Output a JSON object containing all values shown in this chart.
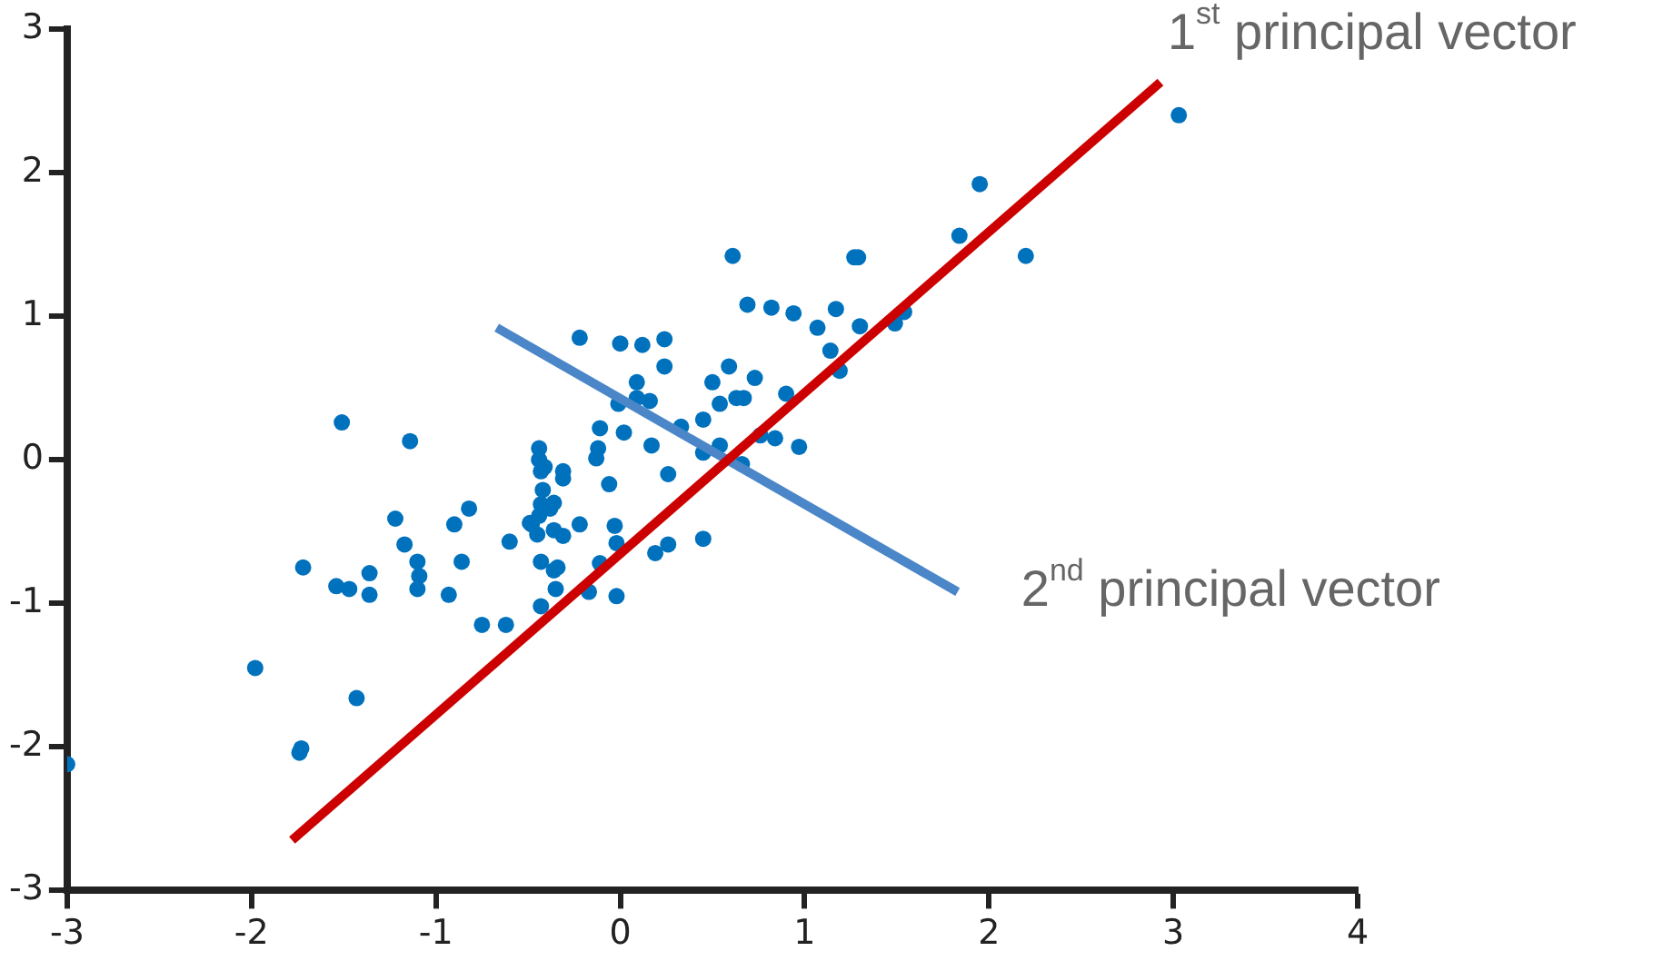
{
  "chart_data": {
    "type": "scatter",
    "xlim": [
      -3,
      4
    ],
    "xticks": [
      -3,
      -2,
      -1,
      0,
      1,
      2,
      3,
      4
    ],
    "ylim": [
      -3,
      3
    ],
    "yticks": [
      -3,
      -2,
      -1,
      0,
      1,
      2,
      3
    ],
    "grid": false,
    "legend": false,
    "series": [
      {
        "color": "#0072bd",
        "marker": "circle",
        "x": [
          -3.0,
          -1.98,
          -1.74,
          -1.73,
          -1.72,
          -1.51,
          -1.54,
          -1.47,
          -1.43,
          -1.36,
          -1.36,
          -1.14,
          -1.22,
          -1.17,
          -1.1,
          -1.09,
          -1.1,
          -0.93,
          -0.9,
          -0.86,
          -0.82,
          -0.75,
          -0.62,
          -0.6,
          -0.49,
          -0.44,
          -0.44,
          -0.43,
          -0.41,
          -0.42,
          -0.43,
          -0.44,
          -0.43,
          -0.43,
          -0.38,
          -0.36,
          -0.35,
          -0.31,
          -0.22,
          0.0,
          0.12,
          0.24,
          0.24,
          0.09,
          0.09,
          0.16,
          -0.01,
          -0.11,
          0.02,
          0.17,
          -0.12,
          -0.13,
          0.33,
          0.45,
          0.5,
          0.59,
          0.54,
          0.63,
          0.67,
          0.73,
          0.9,
          0.45,
          0.54,
          0.66,
          0.76,
          0.84,
          0.97,
          0.61,
          0.69,
          0.82,
          0.94,
          1.07,
          1.17,
          1.14,
          1.19,
          1.3,
          1.27,
          1.29,
          -0.31,
          -0.36,
          -0.06,
          0.26,
          -0.22,
          -0.31,
          -0.48,
          -0.45,
          -0.03,
          -0.02,
          0.19,
          0.26,
          0.45,
          -0.11,
          -0.36,
          -0.34,
          -0.17,
          -0.02,
          3.03,
          1.95,
          1.84,
          2.2,
          1.49,
          1.54
        ],
        "values": [
          -2.12,
          -1.45,
          -2.04,
          -2.01,
          -0.75,
          0.26,
          -0.88,
          -0.9,
          -1.66,
          -0.79,
          -0.94,
          0.13,
          -0.41,
          -0.59,
          -0.71,
          -0.81,
          -0.9,
          -0.94,
          -0.45,
          -0.71,
          -0.34,
          -1.15,
          -1.15,
          -0.57,
          -0.44,
          0.08,
          0.0,
          -0.08,
          -0.05,
          -0.21,
          -0.31,
          -0.39,
          -0.71,
          -1.02,
          -0.34,
          -0.49,
          -0.9,
          -0.13,
          0.85,
          0.81,
          0.8,
          0.84,
          0.65,
          0.54,
          0.43,
          0.41,
          0.39,
          0.22,
          0.19,
          0.1,
          0.08,
          0.01,
          0.23,
          0.28,
          0.54,
          0.65,
          0.39,
          0.43,
          0.43,
          0.57,
          0.46,
          0.05,
          0.1,
          -0.03,
          0.17,
          0.15,
          0.09,
          1.42,
          1.08,
          1.06,
          1.02,
          0.92,
          1.05,
          0.76,
          0.62,
          0.93,
          1.41,
          1.41,
          -0.08,
          -0.3,
          -0.17,
          -0.1,
          -0.45,
          -0.53,
          -0.45,
          -0.52,
          -0.46,
          -0.58,
          -0.65,
          -0.59,
          -0.55,
          -0.72,
          -0.77,
          -0.75,
          -0.92,
          -0.95,
          2.4,
          1.92,
          1.56,
          1.42,
          0.95,
          1.03
        ]
      },
      {
        "type": "line",
        "color": "#cc0000",
        "marker": "none",
        "x": [
          -1.78,
          2.93
        ],
        "values": [
          -2.65,
          2.63
        ]
      },
      {
        "type": "line",
        "color": "#4a86c8",
        "marker": "none",
        "x": [
          -0.67,
          1.83
        ],
        "values": [
          0.92,
          -0.92
        ]
      }
    ],
    "annotations": [
      "1$^{st}$ principal vector",
      "2$^{nd}$ principal vector"
    ]
  }
}
